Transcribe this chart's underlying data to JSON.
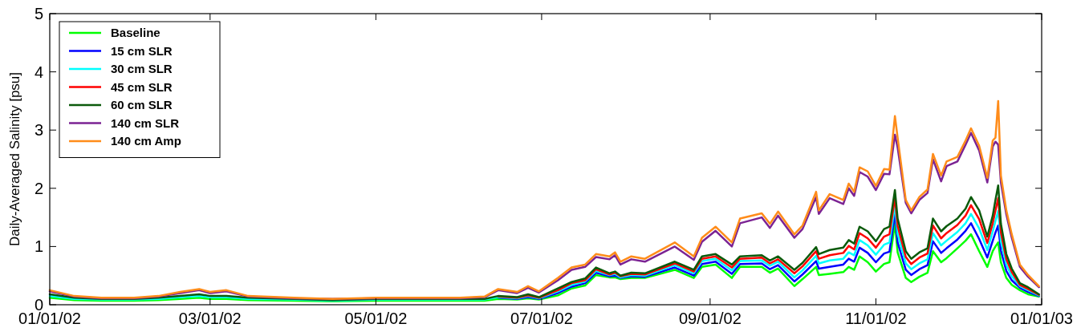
{
  "chart_data": {
    "type": "line",
    "ylabel": "Daily-Averaged Salinity [psu]",
    "xlim": [
      "2002-01-01",
      "2003-01-01"
    ],
    "ylim": [
      0,
      5
    ],
    "yticks": [
      0,
      1,
      2,
      3,
      4,
      5
    ],
    "xticks": [
      {
        "value": "2002-01-01",
        "label": "01/01/02"
      },
      {
        "value": "2002-03-01",
        "label": "03/01/02"
      },
      {
        "value": "2002-05-01",
        "label": "05/01/02"
      },
      {
        "value": "2002-07-01",
        "label": "07/01/02"
      },
      {
        "value": "2002-09-01",
        "label": "09/01/02"
      },
      {
        "value": "2002-11-01",
        "label": "11/01/02"
      },
      {
        "value": "2003-01-01",
        "label": "01/01/03"
      }
    ],
    "grid": false,
    "legend": "top left",
    "marker": "none",
    "line_style": "solid",
    "x": [
      "2002-01-01",
      "2002-01-10",
      "2002-01-20",
      "2002-02-01",
      "2002-02-10",
      "2002-02-18",
      "2002-02-25",
      "2002-03-01",
      "2002-03-07",
      "2002-03-15",
      "2002-04-01",
      "2002-04-15",
      "2002-05-01",
      "2002-05-15",
      "2002-06-01",
      "2002-06-10",
      "2002-06-15",
      "2002-06-22",
      "2002-06-26",
      "2002-06-30",
      "2002-07-07",
      "2002-07-12",
      "2002-07-17",
      "2002-07-21",
      "2002-07-26",
      "2002-07-28",
      "2002-07-30",
      "2002-08-03",
      "2002-08-08",
      "2002-08-19",
      "2002-08-26",
      "2002-08-29",
      "2002-09-03",
      "2002-09-09",
      "2002-09-12",
      "2002-09-20",
      "2002-09-23",
      "2002-09-26",
      "2002-10-02",
      "2002-10-05",
      "2002-10-10",
      "2002-10-11",
      "2002-10-15",
      "2002-10-20",
      "2002-10-22",
      "2002-10-24",
      "2002-10-26",
      "2002-10-29",
      "2002-11-01",
      "2002-11-04",
      "2002-11-06",
      "2002-11-08",
      "2002-11-09",
      "2002-11-12",
      "2002-11-14",
      "2002-11-17",
      "2002-11-20",
      "2002-11-22",
      "2002-11-25",
      "2002-11-27",
      "2002-12-01",
      "2002-12-04",
      "2002-12-06",
      "2002-12-09",
      "2002-12-12",
      "2002-12-14",
      "2002-12-15",
      "2002-12-16",
      "2002-12-17",
      "2002-12-19",
      "2002-12-21",
      "2002-12-24",
      "2002-12-27",
      "2002-12-31"
    ],
    "series": [
      {
        "name": "Baseline",
        "color": "#00ff00",
        "values": [
          0.12,
          0.08,
          0.07,
          0.07,
          0.08,
          0.1,
          0.12,
          0.1,
          0.1,
          0.08,
          0.07,
          0.06,
          0.07,
          0.07,
          0.07,
          0.07,
          0.1,
          0.09,
          0.11,
          0.09,
          0.16,
          0.28,
          0.33,
          0.51,
          0.47,
          0.47,
          0.44,
          0.46,
          0.46,
          0.6,
          0.46,
          0.65,
          0.69,
          0.46,
          0.65,
          0.65,
          0.55,
          0.62,
          0.32,
          0.44,
          0.65,
          0.51,
          0.53,
          0.56,
          0.65,
          0.6,
          0.83,
          0.73,
          0.57,
          0.7,
          0.73,
          1.4,
          0.9,
          0.46,
          0.39,
          0.48,
          0.55,
          0.92,
          0.73,
          0.8,
          0.97,
          1.1,
          1.21,
          0.92,
          0.65,
          0.92,
          1.0,
          1.07,
          0.73,
          0.46,
          0.34,
          0.25,
          0.18,
          0.14
        ]
      },
      {
        "name": "15 cm SLR",
        "color": "#0000ff",
        "values": [
          null,
          null,
          null,
          null,
          null,
          null,
          null,
          null,
          null,
          null,
          null,
          null,
          null,
          null,
          null,
          null,
          0.12,
          0.1,
          0.13,
          0.1,
          0.2,
          0.31,
          0.37,
          0.55,
          0.49,
          0.5,
          0.46,
          0.49,
          0.48,
          0.64,
          0.5,
          0.7,
          0.74,
          0.53,
          0.7,
          0.71,
          0.61,
          0.68,
          0.4,
          0.52,
          0.75,
          0.62,
          0.65,
          0.69,
          0.79,
          0.74,
          0.98,
          0.89,
          0.73,
          0.88,
          0.91,
          1.57,
          1.07,
          0.6,
          0.51,
          0.61,
          0.68,
          1.09,
          0.89,
          0.97,
          1.12,
          1.27,
          1.4,
          1.13,
          0.81,
          1.1,
          1.24,
          1.36,
          0.93,
          0.58,
          0.42,
          0.29,
          0.22,
          0.15
        ]
      },
      {
        "name": "30 cm SLR",
        "color": "#00ffff",
        "values": [
          0.15,
          0.1,
          0.09,
          0.09,
          0.1,
          0.13,
          0.15,
          0.13,
          0.13,
          0.1,
          0.09,
          0.07,
          0.09,
          0.09,
          0.09,
          0.09,
          0.13,
          0.11,
          0.15,
          0.11,
          0.23,
          0.34,
          0.4,
          0.58,
          0.51,
          0.53,
          0.47,
          0.51,
          0.5,
          0.68,
          0.54,
          0.75,
          0.79,
          0.59,
          0.75,
          0.76,
          0.67,
          0.74,
          0.47,
          0.59,
          0.84,
          0.71,
          0.76,
          0.79,
          0.9,
          0.85,
          1.11,
          1.02,
          0.86,
          1.03,
          1.07,
          1.71,
          1.22,
          0.71,
          0.61,
          0.71,
          0.78,
          1.23,
          1.02,
          1.1,
          1.25,
          1.4,
          1.56,
          1.31,
          0.94,
          1.26,
          1.44,
          1.61,
          1.09,
          0.69,
          0.49,
          0.32,
          0.25,
          0.16
        ]
      },
      {
        "name": "45 cm SLR",
        "color": "#ff0000",
        "values": [
          null,
          null,
          null,
          null,
          null,
          null,
          null,
          null,
          null,
          null,
          null,
          null,
          null,
          null,
          null,
          null,
          0.14,
          0.12,
          0.16,
          0.12,
          0.25,
          0.37,
          0.42,
          0.61,
          0.52,
          0.55,
          0.49,
          0.53,
          0.52,
          0.71,
          0.57,
          0.79,
          0.83,
          0.64,
          0.79,
          0.81,
          0.71,
          0.78,
          0.54,
          0.66,
          0.92,
          0.79,
          0.85,
          0.89,
          1.01,
          0.95,
          1.23,
          1.14,
          0.98,
          1.17,
          1.21,
          1.84,
          1.35,
          0.82,
          0.7,
          0.81,
          0.88,
          1.36,
          1.14,
          1.23,
          1.37,
          1.53,
          1.71,
          1.47,
          1.06,
          1.4,
          1.62,
          1.83,
          1.24,
          0.78,
          0.56,
          0.34,
          0.27,
          0.17
        ]
      },
      {
        "name": "60 cm SLR",
        "color": "#0b5a0b",
        "values": [
          0.18,
          0.12,
          0.1,
          0.1,
          0.12,
          0.15,
          0.18,
          0.15,
          0.15,
          0.12,
          0.1,
          0.08,
          0.1,
          0.1,
          0.1,
          0.1,
          0.15,
          0.13,
          0.18,
          0.13,
          0.28,
          0.39,
          0.45,
          0.64,
          0.54,
          0.57,
          0.5,
          0.55,
          0.54,
          0.74,
          0.6,
          0.83,
          0.87,
          0.69,
          0.83,
          0.85,
          0.76,
          0.83,
          0.6,
          0.72,
          0.99,
          0.87,
          0.94,
          0.98,
          1.11,
          1.05,
          1.34,
          1.26,
          1.09,
          1.3,
          1.34,
          1.97,
          1.48,
          0.92,
          0.79,
          0.9,
          0.97,
          1.48,
          1.26,
          1.35,
          1.48,
          1.65,
          1.85,
          1.62,
          1.17,
          1.53,
          1.8,
          2.05,
          1.39,
          0.87,
          0.62,
          0.37,
          0.3,
          0.18
        ]
      },
      {
        "name": "140 cm SLR",
        "color": "#7b2393",
        "values": [
          0.23,
          0.14,
          0.11,
          0.11,
          0.14,
          0.2,
          0.25,
          0.2,
          0.23,
          0.14,
          0.11,
          0.1,
          0.11,
          0.11,
          0.11,
          0.13,
          0.25,
          0.2,
          0.29,
          0.21,
          0.42,
          0.6,
          0.65,
          0.82,
          0.78,
          0.85,
          0.69,
          0.78,
          0.74,
          1.0,
          0.77,
          1.08,
          1.27,
          1.0,
          1.4,
          1.5,
          1.32,
          1.53,
          1.15,
          1.3,
          1.85,
          1.56,
          1.83,
          1.73,
          2.0,
          1.87,
          2.28,
          2.2,
          1.97,
          2.25,
          2.24,
          2.92,
          2.7,
          1.75,
          1.57,
          1.8,
          1.92,
          2.5,
          2.12,
          2.38,
          2.46,
          2.75,
          2.95,
          2.65,
          2.1,
          2.72,
          2.8,
          2.75,
          2.1,
          1.55,
          1.15,
          0.65,
          0.48,
          0.3
        ]
      },
      {
        "name": "140 cm Amp",
        "color": "#ff8c1a",
        "values": [
          0.25,
          0.15,
          0.12,
          0.12,
          0.15,
          0.22,
          0.27,
          0.22,
          0.25,
          0.15,
          0.12,
          0.1,
          0.12,
          0.12,
          0.12,
          0.14,
          0.27,
          0.22,
          0.32,
          0.23,
          0.46,
          0.64,
          0.69,
          0.87,
          0.83,
          0.9,
          0.74,
          0.83,
          0.79,
          1.07,
          0.83,
          1.15,
          1.34,
          1.07,
          1.48,
          1.57,
          1.39,
          1.6,
          1.21,
          1.36,
          1.94,
          1.62,
          1.9,
          1.8,
          2.08,
          1.94,
          2.36,
          2.29,
          2.04,
          2.33,
          2.32,
          3.24,
          2.87,
          1.8,
          1.62,
          1.85,
          1.98,
          2.59,
          2.22,
          2.46,
          2.54,
          2.82,
          3.03,
          2.73,
          2.18,
          2.82,
          2.87,
          3.5,
          2.22,
          1.62,
          1.21,
          0.69,
          0.51,
          0.32
        ]
      }
    ]
  }
}
